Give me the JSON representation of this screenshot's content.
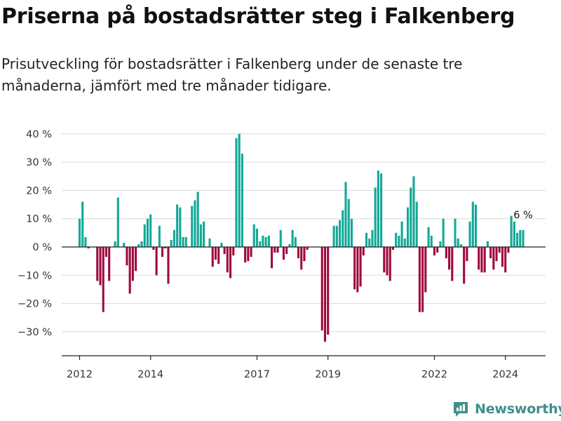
{
  "header": {
    "title": "Priserna på bostadsrätter steg i Falkenberg",
    "subtitle": "Prisutveckling för bostadsrätter i Falkenberg under de senaste tre månaderna, jämfört med tre månader tidigare."
  },
  "brand": {
    "name": "Newsworthy",
    "icon": "newsworthy-logo-icon",
    "color": "#3f8f8a"
  },
  "colors": {
    "positive": "#12a898",
    "negative": "#9e0a3f",
    "grid": "#d9d9d9",
    "axis": "#222222"
  },
  "chart_data": {
    "type": "bar",
    "unit": "%",
    "x_axis": {
      "type": "date",
      "range": [
        "2011-09",
        "2025-06"
      ],
      "tick_labels": [
        "2012",
        "2014",
        "2017",
        "2019",
        "2022",
        "2024"
      ]
    },
    "y_axis": {
      "range": [
        -35,
        42
      ],
      "ticks": [
        40,
        30,
        20,
        10,
        0,
        -10,
        -20,
        -30
      ],
      "tick_labels": [
        "40 %",
        "30 %",
        "20 %",
        "10 %",
        "0 %",
        "−10 %",
        "−20 %",
        "−30 %"
      ]
    },
    "grid": true,
    "legend": "none",
    "annotation": {
      "date": "2024-07",
      "label": "6 %"
    },
    "series": [
      {
        "values": [
          {
            "date": "2012-01",
            "value": 10
          },
          {
            "date": "2012-02",
            "value": 16
          },
          {
            "date": "2012-03",
            "value": 3.5
          },
          {
            "date": "2012-04",
            "value": -0.5
          },
          {
            "date": "2012-05",
            "value": 0
          },
          {
            "date": "2012-06",
            "value": 0
          },
          {
            "date": "2012-07",
            "value": -12
          },
          {
            "date": "2012-08",
            "value": -13.5
          },
          {
            "date": "2012-09",
            "value": -23
          },
          {
            "date": "2012-10",
            "value": -3.5
          },
          {
            "date": "2012-11",
            "value": -12
          },
          {
            "date": "2012-12",
            "value": 0
          },
          {
            "date": "2013-01",
            "value": 2
          },
          {
            "date": "2013-02",
            "value": 17.5
          },
          {
            "date": "2013-03",
            "value": 0
          },
          {
            "date": "2013-04",
            "value": 1.5
          },
          {
            "date": "2013-05",
            "value": -6.5
          },
          {
            "date": "2013-06",
            "value": -16.5
          },
          {
            "date": "2013-07",
            "value": -12
          },
          {
            "date": "2013-08",
            "value": -8.5
          },
          {
            "date": "2013-09",
            "value": 1
          },
          {
            "date": "2013-10",
            "value": 2
          },
          {
            "date": "2013-11",
            "value": 8
          },
          {
            "date": "2013-12",
            "value": 10
          },
          {
            "date": "2014-01",
            "value": 11.5
          },
          {
            "date": "2014-02",
            "value": -1
          },
          {
            "date": "2014-03",
            "value": -10
          },
          {
            "date": "2014-04",
            "value": 7.5
          },
          {
            "date": "2014-05",
            "value": -3.5
          },
          {
            "date": "2014-06",
            "value": -0.5
          },
          {
            "date": "2014-07",
            "value": -13
          },
          {
            "date": "2014-08",
            "value": 2.5
          },
          {
            "date": "2014-09",
            "value": 6
          },
          {
            "date": "2014-10",
            "value": 15
          },
          {
            "date": "2014-11",
            "value": 14
          },
          {
            "date": "2014-12",
            "value": 3.5
          },
          {
            "date": "2015-01",
            "value": 3.5
          },
          {
            "date": "2015-02",
            "value": 0
          },
          {
            "date": "2015-03",
            "value": 14.5
          },
          {
            "date": "2015-04",
            "value": 16.5
          },
          {
            "date": "2015-05",
            "value": 19.5
          },
          {
            "date": "2015-06",
            "value": 8
          },
          {
            "date": "2015-07",
            "value": 9
          },
          {
            "date": "2015-08",
            "value": 0
          },
          {
            "date": "2015-09",
            "value": 3
          },
          {
            "date": "2015-10",
            "value": -7
          },
          {
            "date": "2015-11",
            "value": -4.5
          },
          {
            "date": "2015-12",
            "value": -6
          },
          {
            "date": "2016-01",
            "value": 1.5
          },
          {
            "date": "2016-02",
            "value": -2.5
          },
          {
            "date": "2016-03",
            "value": -9
          },
          {
            "date": "2016-04",
            "value": -11
          },
          {
            "date": "2016-05",
            "value": -3
          },
          {
            "date": "2016-06",
            "value": 38.5
          },
          {
            "date": "2016-07",
            "value": 40
          },
          {
            "date": "2016-08",
            "value": 33
          },
          {
            "date": "2016-09",
            "value": -5.5
          },
          {
            "date": "2016-10",
            "value": -5
          },
          {
            "date": "2016-11",
            "value": -3.5
          },
          {
            "date": "2016-12",
            "value": 8
          },
          {
            "date": "2017-01",
            "value": 6.5
          },
          {
            "date": "2017-02",
            "value": 2
          },
          {
            "date": "2017-03",
            "value": 4
          },
          {
            "date": "2017-04",
            "value": 3.5
          },
          {
            "date": "2017-05",
            "value": 4
          },
          {
            "date": "2017-06",
            "value": -7.5
          },
          {
            "date": "2017-07",
            "value": -2
          },
          {
            "date": "2017-08",
            "value": -2
          },
          {
            "date": "2017-09",
            "value": 6
          },
          {
            "date": "2017-10",
            "value": -4.5
          },
          {
            "date": "2017-11",
            "value": -2.5
          },
          {
            "date": "2017-12",
            "value": 1
          },
          {
            "date": "2018-01",
            "value": 6
          },
          {
            "date": "2018-02",
            "value": 3.5
          },
          {
            "date": "2018-03",
            "value": -4
          },
          {
            "date": "2018-04",
            "value": -8
          },
          {
            "date": "2018-05",
            "value": -5
          },
          {
            "date": "2018-06",
            "value": -1
          },
          {
            "date": "2018-07",
            "value": 0
          },
          {
            "date": "2018-08",
            "value": 0
          },
          {
            "date": "2018-09",
            "value": 0
          },
          {
            "date": "2018-10",
            "value": 0
          },
          {
            "date": "2018-11",
            "value": -29.5
          },
          {
            "date": "2018-12",
            "value": -33.5
          },
          {
            "date": "2019-01",
            "value": -31
          },
          {
            "date": "2019-02",
            "value": 0
          },
          {
            "date": "2019-03",
            "value": 7.5
          },
          {
            "date": "2019-04",
            "value": 7.5
          },
          {
            "date": "2019-05",
            "value": 9.5
          },
          {
            "date": "2019-06",
            "value": 13
          },
          {
            "date": "2019-07",
            "value": 23
          },
          {
            "date": "2019-08",
            "value": 17
          },
          {
            "date": "2019-09",
            "value": 10
          },
          {
            "date": "2019-10",
            "value": -15
          },
          {
            "date": "2019-11",
            "value": -16
          },
          {
            "date": "2019-12",
            "value": -14
          },
          {
            "date": "2020-01",
            "value": -3
          },
          {
            "date": "2020-02",
            "value": 5
          },
          {
            "date": "2020-03",
            "value": 3
          },
          {
            "date": "2020-04",
            "value": 6
          },
          {
            "date": "2020-05",
            "value": 21
          },
          {
            "date": "2020-06",
            "value": 27
          },
          {
            "date": "2020-07",
            "value": 26
          },
          {
            "date": "2020-08",
            "value": -9
          },
          {
            "date": "2020-09",
            "value": -10
          },
          {
            "date": "2020-10",
            "value": -12
          },
          {
            "date": "2020-11",
            "value": -1
          },
          {
            "date": "2020-12",
            "value": 5
          },
          {
            "date": "2021-01",
            "value": 4
          },
          {
            "date": "2021-02",
            "value": 9
          },
          {
            "date": "2021-03",
            "value": 3
          },
          {
            "date": "2021-04",
            "value": 14
          },
          {
            "date": "2021-05",
            "value": 21
          },
          {
            "date": "2021-06",
            "value": 25
          },
          {
            "date": "2021-07",
            "value": 16
          },
          {
            "date": "2021-08",
            "value": -23
          },
          {
            "date": "2021-09",
            "value": -23
          },
          {
            "date": "2021-10",
            "value": -16
          },
          {
            "date": "2021-11",
            "value": 7
          },
          {
            "date": "2021-12",
            "value": 4
          },
          {
            "date": "2022-01",
            "value": -3
          },
          {
            "date": "2022-02",
            "value": -2
          },
          {
            "date": "2022-03",
            "value": 2
          },
          {
            "date": "2022-04",
            "value": 10
          },
          {
            "date": "2022-05",
            "value": -4
          },
          {
            "date": "2022-06",
            "value": -8
          },
          {
            "date": "2022-07",
            "value": -12
          },
          {
            "date": "2022-08",
            "value": 10
          },
          {
            "date": "2022-09",
            "value": 3
          },
          {
            "date": "2022-10",
            "value": 1
          },
          {
            "date": "2022-11",
            "value": -13
          },
          {
            "date": "2022-12",
            "value": -5
          },
          {
            "date": "2023-01",
            "value": 9
          },
          {
            "date": "2023-02",
            "value": 16
          },
          {
            "date": "2023-03",
            "value": 15
          },
          {
            "date": "2023-04",
            "value": -8
          },
          {
            "date": "2023-05",
            "value": -9
          },
          {
            "date": "2023-06",
            "value": -9
          },
          {
            "date": "2023-07",
            "value": 2
          },
          {
            "date": "2023-08",
            "value": -4
          },
          {
            "date": "2023-09",
            "value": -8
          },
          {
            "date": "2023-10",
            "value": -5
          },
          {
            "date": "2023-11",
            "value": -2
          },
          {
            "date": "2023-12",
            "value": -7
          },
          {
            "date": "2024-01",
            "value": -9
          },
          {
            "date": "2024-02",
            "value": -2
          },
          {
            "date": "2024-03",
            "value": 11
          },
          {
            "date": "2024-04",
            "value": 9
          },
          {
            "date": "2024-05",
            "value": 5
          },
          {
            "date": "2024-06",
            "value": 6
          },
          {
            "date": "2024-07",
            "value": 6
          }
        ]
      }
    ]
  }
}
